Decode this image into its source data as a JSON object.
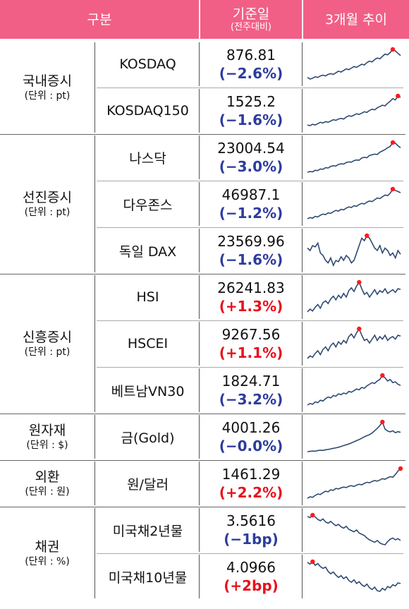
{
  "header": {
    "col_category": "구분",
    "col_value": "기준일",
    "col_value_sub": "(전주대비)",
    "col_trend": "3개월 추이"
  },
  "groups": [
    {
      "name": "국내증시",
      "unit": "(단위 : pt)",
      "rows": [
        {
          "name": "KOSDAQ",
          "value": "876.81",
          "change": "(−2.6%)",
          "direction": "down",
          "trend": [
            52,
            50,
            51,
            53,
            52,
            54,
            55,
            54,
            56,
            57,
            56,
            58,
            60,
            59,
            61,
            63,
            62,
            64,
            66,
            65,
            67,
            69,
            68,
            71,
            73,
            72,
            75,
            77,
            76,
            79,
            82,
            81,
            84,
            88,
            86,
            83,
            80
          ]
        },
        {
          "name": "KOSDAQ150",
          "value": "1525.2",
          "change": "(−1.6%)",
          "direction": "down",
          "trend": [
            40,
            39,
            41,
            40,
            42,
            44,
            43,
            45,
            44,
            46,
            48,
            47,
            49,
            50,
            49,
            52,
            54,
            53,
            55,
            57,
            56,
            58,
            60,
            59,
            62,
            64,
            63,
            66,
            68,
            70,
            69,
            73,
            76,
            80,
            78,
            84,
            82
          ]
        }
      ]
    },
    {
      "name": "선진증시",
      "unit": "(단위 : pt)",
      "rows": [
        {
          "name": "나스닥",
          "value": "23004.54",
          "change": "(−3.0%)",
          "direction": "down",
          "trend": [
            18800,
            18900,
            18850,
            19100,
            19050,
            19300,
            19250,
            19500,
            19450,
            19700,
            19800,
            19750,
            20000,
            20100,
            20050,
            20300,
            20400,
            20350,
            20600,
            20700,
            20650,
            21000,
            21100,
            21050,
            21400,
            21500,
            21600,
            21550,
            21900,
            22100,
            22300,
            22600,
            22800,
            23400,
            23300,
            22900,
            22600
          ]
        },
        {
          "name": "다우존스",
          "value": "46987.1",
          "change": "(−1.2%)",
          "direction": "down",
          "trend": [
            42500,
            42700,
            42600,
            42900,
            42800,
            43100,
            43300,
            43200,
            43500,
            43400,
            43700,
            43900,
            43800,
            44100,
            44000,
            44300,
            44500,
            44400,
            44700,
            44600,
            44900,
            45100,
            45000,
            45300,
            45500,
            45400,
            45700,
            46000,
            45900,
            46200,
            46500,
            46400,
            46800,
            47500,
            47300,
            47100,
            46900
          ]
        },
        {
          "name": "독일 DAX",
          "value": "23569.96",
          "change": "(−1.6%)",
          "direction": "down",
          "trend": [
            23800,
            23700,
            23900,
            23850,
            24000,
            23600,
            23500,
            23300,
            23200,
            23400,
            23100,
            23300,
            23250,
            23450,
            23300,
            23500,
            23400,
            23200,
            23300,
            23600,
            23900,
            24200,
            24100,
            24300,
            24200,
            24000,
            23800,
            23700,
            23900,
            23600,
            23800,
            23700,
            23500,
            23600,
            23400,
            23700,
            23550
          ]
        }
      ]
    },
    {
      "name": "신흥증시",
      "unit": "(단위 : pt)",
      "rows": [
        {
          "name": "HSI",
          "value": "26241.83",
          "change": "(+1.3%)",
          "direction": "up",
          "trend": [
            23800,
            24100,
            23900,
            24300,
            24600,
            24200,
            24800,
            25000,
            24700,
            25200,
            25500,
            25100,
            25600,
            25300,
            25800,
            25400,
            26100,
            26400,
            26000,
            26600,
            27000,
            26300,
            25700,
            25900,
            25400,
            25800,
            26200,
            25700,
            26100,
            25900,
            26300,
            25800,
            26000,
            26200,
            25900,
            26300,
            26240
          ]
        },
        {
          "name": "HSCEI",
          "value": "9267.56",
          "change": "(+1.1%)",
          "direction": "up",
          "trend": [
            8400,
            8500,
            8450,
            8600,
            8700,
            8550,
            8750,
            8850,
            8700,
            8900,
            9000,
            8850,
            9050,
            8950,
            9100,
            9000,
            9250,
            9350,
            9200,
            9400,
            9550,
            9300,
            9100,
            9150,
            9000,
            9150,
            9300,
            9100,
            9250,
            9150,
            9300,
            9100,
            9200,
            9250,
            9150,
            9300,
            9270
          ]
        },
        {
          "name": "베트남VN30",
          "value": "1824.71",
          "change": "(−3.2%)",
          "direction": "down",
          "trend": [
            1580,
            1600,
            1590,
            1620,
            1610,
            1640,
            1630,
            1660,
            1680,
            1670,
            1700,
            1690,
            1720,
            1710,
            1730,
            1720,
            1750,
            1740,
            1760,
            1780,
            1770,
            1800,
            1790,
            1820,
            1840,
            1860,
            1850,
            1880,
            1900,
            1950,
            1920,
            1880,
            1900,
            1860,
            1870,
            1840,
            1825
          ]
        }
      ]
    },
    {
      "name": "원자재",
      "unit": "(단위 : $)",
      "rows": [
        {
          "name": "금(Gold)",
          "value": "4001.26",
          "change": "(−0.0%)",
          "direction": "down",
          "trend": [
            3300,
            3310,
            3320,
            3315,
            3340,
            3350,
            3345,
            3370,
            3380,
            3400,
            3420,
            3440,
            3460,
            3490,
            3520,
            3550,
            3580,
            3620,
            3660,
            3700,
            3740,
            3790,
            3840,
            3880,
            3920,
            3980,
            4060,
            4150,
            4250,
            4380,
            4120,
            4050,
            4020,
            4060,
            3990,
            4030,
            4001
          ]
        }
      ]
    },
    {
      "name": "외환",
      "unit": "(단위 : 원)",
      "rows": [
        {
          "name": "원/달러",
          "value": "1461.29",
          "change": "(+2.2%)",
          "direction": "up",
          "trend": [
            1355,
            1360,
            1358,
            1365,
            1370,
            1368,
            1375,
            1380,
            1378,
            1385,
            1383,
            1390,
            1388,
            1392,
            1395,
            1393,
            1398,
            1400,
            1397,
            1402,
            1405,
            1403,
            1408,
            1412,
            1410,
            1415,
            1418,
            1416,
            1420,
            1425,
            1423,
            1428,
            1432,
            1430,
            1440,
            1452,
            1461
          ]
        }
      ]
    },
    {
      "name": "채권",
      "unit": "(단위 : %)",
      "rows": [
        {
          "name": "미국채2년물",
          "value": "3.5616",
          "change": "(−1bp)",
          "direction": "down",
          "trend": [
            3.95,
            3.93,
            3.97,
            3.94,
            3.9,
            3.88,
            3.91,
            3.86,
            3.84,
            3.87,
            3.83,
            3.8,
            3.82,
            3.78,
            3.76,
            3.79,
            3.74,
            3.72,
            3.7,
            3.73,
            3.68,
            3.66,
            3.64,
            3.6,
            3.57,
            3.55,
            3.53,
            3.56,
            3.52,
            3.5,
            3.49,
            3.54,
            3.58,
            3.6,
            3.57,
            3.59,
            3.56
          ]
        },
        {
          "name": "미국채10년물",
          "value": "4.0966",
          "change": "(+2bp)",
          "direction": "up",
          "trend": [
            4.45,
            4.42,
            4.46,
            4.4,
            4.43,
            4.38,
            4.35,
            4.37,
            4.3,
            4.26,
            4.29,
            4.24,
            4.2,
            4.23,
            4.18,
            4.21,
            4.15,
            4.12,
            4.16,
            4.1,
            4.13,
            4.08,
            4.05,
            4.09,
            4.03,
            4.0,
            4.04,
            3.98,
            3.97,
            4.02,
            3.99,
            4.05,
            4.03,
            4.08,
            4.06,
            4.11,
            4.1
          ]
        }
      ]
    }
  ],
  "colors": {
    "header_bg": "#f25f86",
    "header_text": "#ffffff",
    "change_down": "#2c3c9c",
    "change_up": "#e8101c",
    "sparkline": "#2f4a72",
    "peak_marker": "#ff1a1a"
  }
}
